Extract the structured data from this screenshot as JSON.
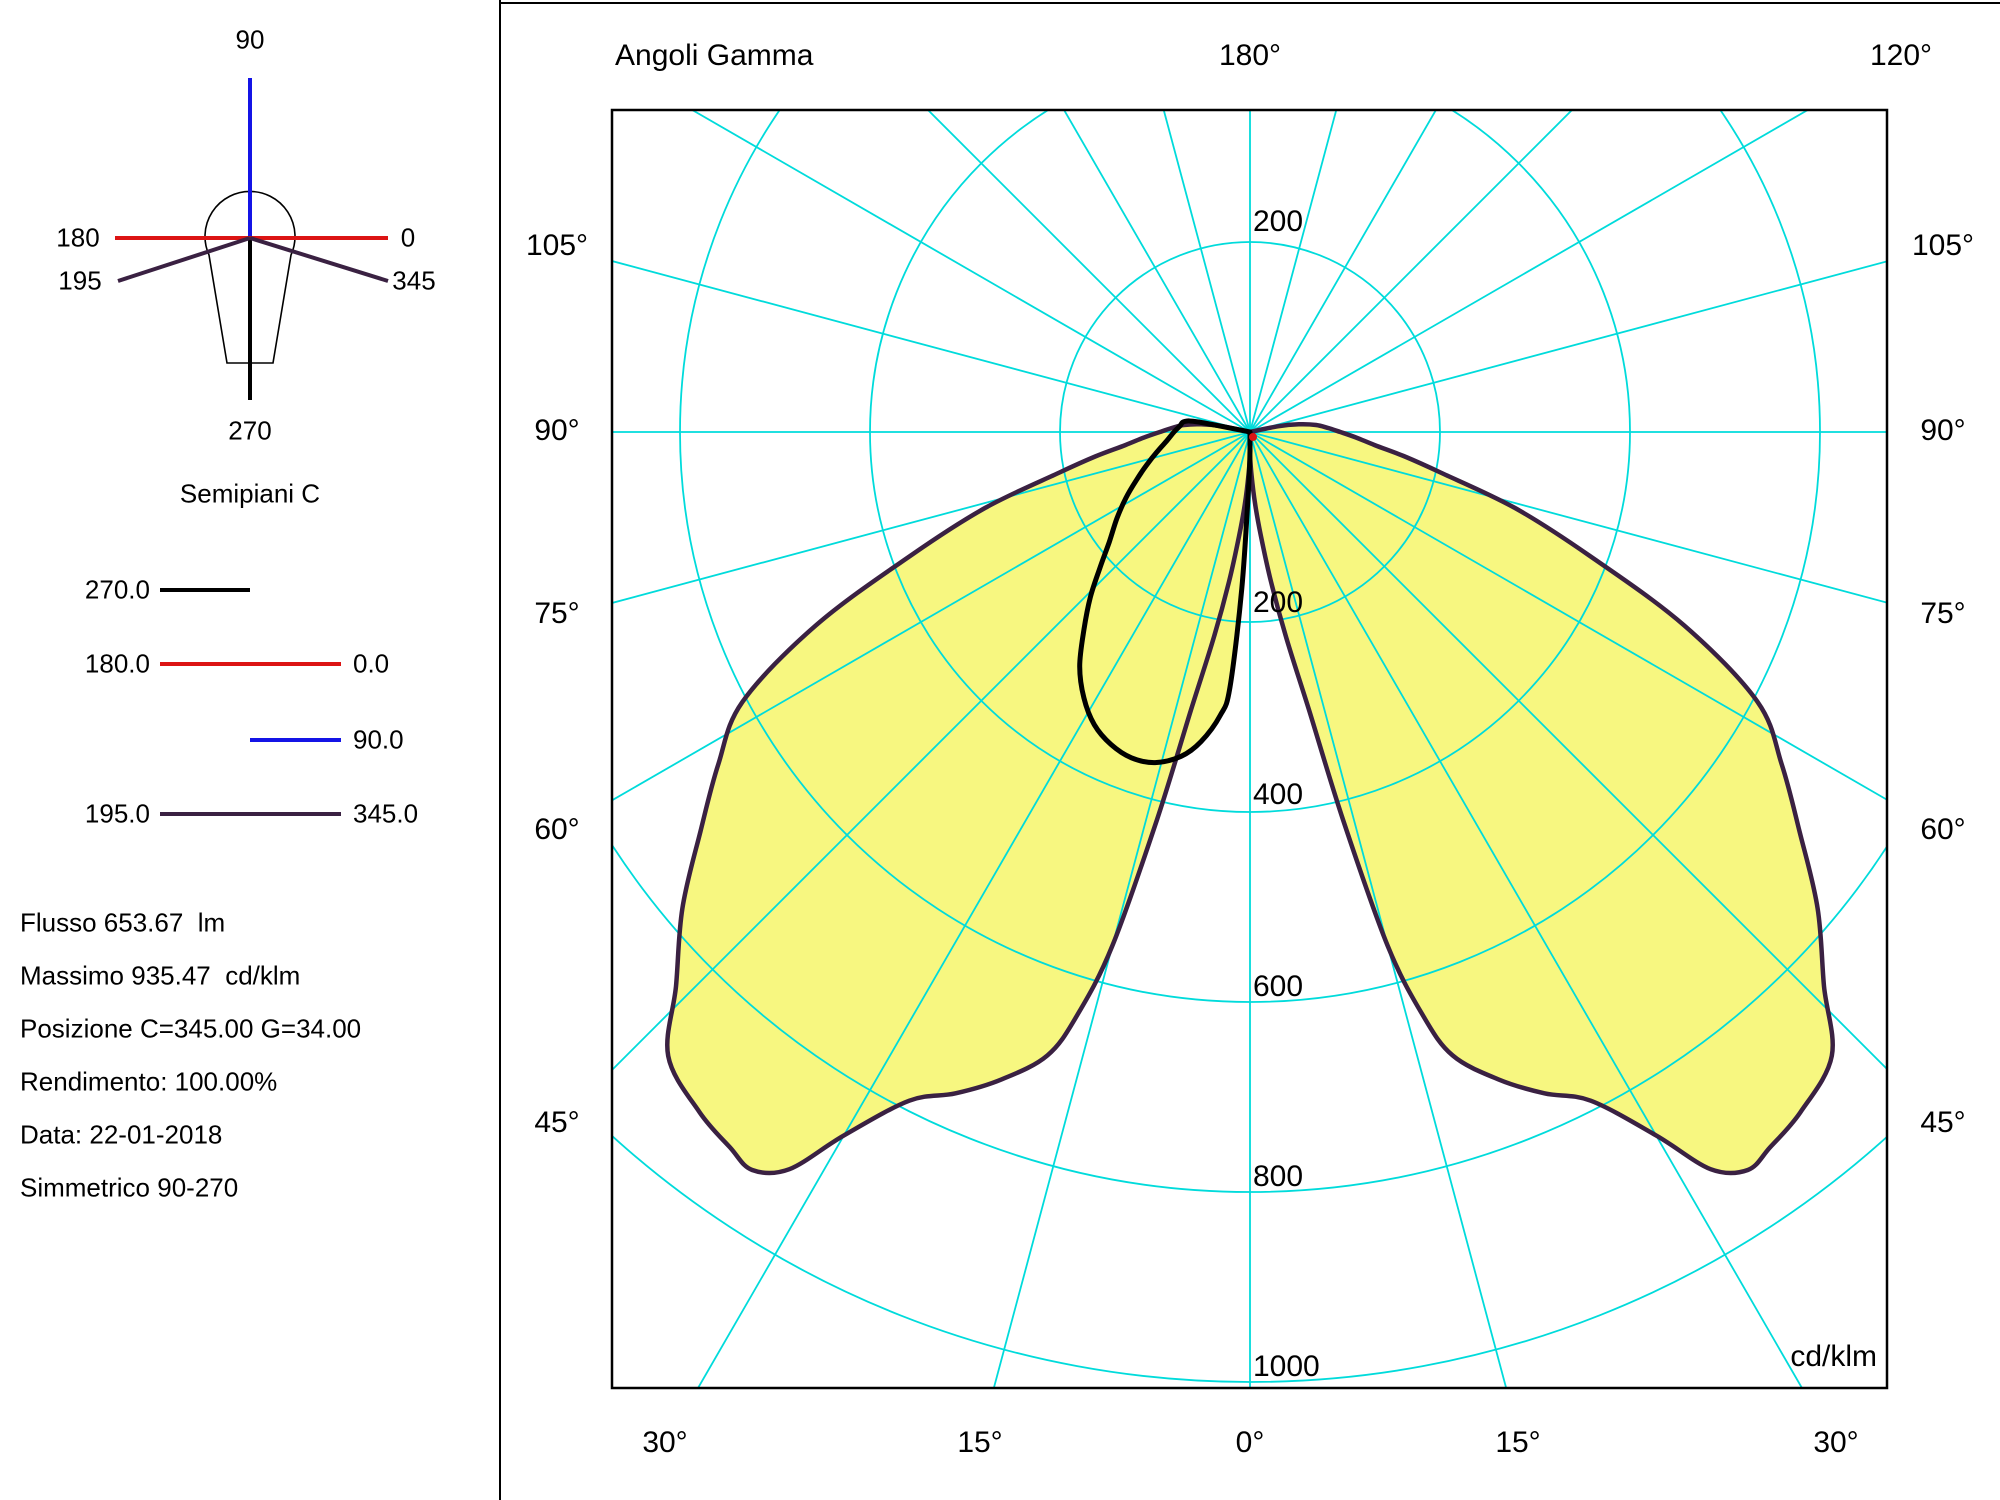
{
  "window": {
    "background": "#FFFFFF",
    "divider_color": "#000000"
  },
  "sidebar": {
    "semipiani": {
      "title": "Semipiani C",
      "axis_labels": {
        "up": "90",
        "left": "180",
        "right": "0",
        "diag_left": "195",
        "diag_right": "345",
        "down": "270"
      },
      "colors": {
        "c90": "#1414E6",
        "c0_180": "#DC1414",
        "c195_345": "#3A2142",
        "c270": "#000000"
      }
    },
    "legend": [
      {
        "left_label": "270.0",
        "right_label": "",
        "color": "#000000"
      },
      {
        "left_label": "180.0",
        "right_label": "0.0",
        "color": "#DC1414"
      },
      {
        "left_label": "",
        "right_label": "90.0",
        "color": "#1414E6"
      },
      {
        "left_label": "195.0",
        "right_label": "345.0",
        "color": "#3A2142"
      }
    ],
    "info_lines": [
      "Flusso 653.67  lm",
      "Massimo 935.47  cd/klm",
      "Posizione C=345.00 G=34.00",
      "Rendimento: 100.00%",
      "Data: 22-01-2018",
      "Simmetrico 90-270"
    ]
  },
  "chart_data": {
    "type": "polar_photometric_diagram",
    "title": "Angoli Gamma",
    "unit": "cd/klm",
    "grid_color": "#00DBDB",
    "curve_fill": "#F7F780",
    "ring_values_cd_klm": [
      200,
      400,
      600,
      800,
      1000
    ],
    "ring_axis_labels": [
      "200",
      "200",
      "400",
      "600",
      "800",
      "1000"
    ],
    "ray_step_deg": 15,
    "gamma_labels_left": [
      "105°",
      "90°",
      "75°",
      "60°",
      "45°"
    ],
    "gamma_labels_right": [
      "105°",
      "90°",
      "75°",
      "60°",
      "45°"
    ],
    "gamma_labels_top": [
      "180°",
      "120°"
    ],
    "gamma_labels_bottom": [
      "30°",
      "15°",
      "0°",
      "15°",
      "30°"
    ],
    "max_cd_klm": 935.47,
    "max_position": {
      "C": 345.0,
      "G": 34.0
    },
    "series": [
      {
        "name": "C195.0-C345.0",
        "color": "#3A2142",
        "fill": "#F7F780",
        "sides": "both",
        "gamma_deg": [
          0,
          2,
          4,
          6,
          8,
          10,
          12,
          13.5,
          15,
          16.5,
          18,
          21,
          24,
          27,
          30,
          32,
          34,
          36,
          39,
          43,
          46,
          50,
          54,
          58,
          62,
          66,
          70,
          74,
          78,
          81,
          84,
          87,
          90,
          93,
          96,
          99,
          101.5,
          103.5
        ],
        "intensity_cd_klm": [
          25,
          45,
          75,
          110,
          160,
          220,
          300,
          420,
          560,
          640,
          690,
          730,
          762,
          790,
          855,
          915,
          937,
          931,
          921,
          898,
          840,
          780,
          715,
          660,
          605,
          500,
          380,
          290,
          205,
          165,
          132,
          112,
          95,
          82,
          70,
          52,
          30,
          0
        ]
      },
      {
        "name": "C270.0",
        "color": "#000000",
        "fill": "#F7F780",
        "sides": "left",
        "gamma_deg": [
          0,
          1.5,
          3,
          4.5,
          6,
          9,
          12,
          16,
          20,
          24,
          28,
          32,
          36,
          40,
          44,
          48,
          52,
          57,
          62,
          67,
          72,
          78,
          84,
          90,
          95,
          99,
          101,
          103
        ],
        "intensity_cd_klm": [
          20,
          60,
          165,
          270,
          300,
          330,
          349,
          362,
          365,
          360,
          349,
          330,
          305,
          272,
          242,
          212,
          188,
          167,
          148,
          130,
          115,
          100,
          88,
          80,
          74,
          70,
          55,
          0
        ]
      },
      {
        "name": "C0.0-C180.0",
        "color": "#DC1414",
        "type": "point",
        "intensity_cd_klm": 0
      }
    ]
  }
}
